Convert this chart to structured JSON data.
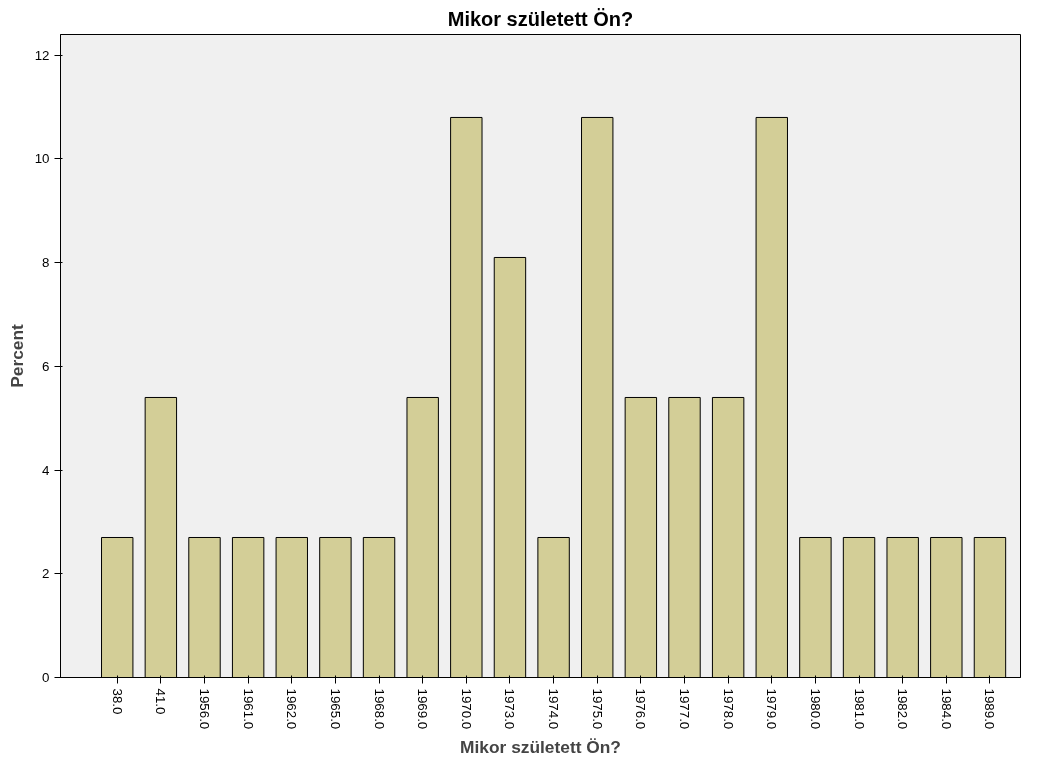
{
  "chart_data": {
    "type": "bar",
    "title": "Mikor született Ön?",
    "xlabel": "Mikor született Ön?",
    "ylabel": "Percent",
    "categories": [
      "38.0",
      "41.0",
      "1956.0",
      "1961.0",
      "1962.0",
      "1965.0",
      "1968.0",
      "1969.0",
      "1970.0",
      "1973.0",
      "1974.0",
      "1975.0",
      "1976.0",
      "1977.0",
      "1978.0",
      "1979.0",
      "1980.0",
      "1981.0",
      "1982.0",
      "1984.0",
      "1989.0"
    ],
    "values": [
      2.7,
      5.4,
      2.7,
      2.7,
      2.7,
      2.7,
      2.7,
      5.4,
      10.8,
      8.1,
      2.7,
      10.8,
      5.4,
      5.4,
      5.4,
      10.8,
      2.7,
      2.7,
      2.7,
      2.7,
      2.7
    ],
    "color": "#d3ce97",
    "ylim": [
      0,
      12.4
    ],
    "yticks": [
      0,
      2,
      4,
      6,
      8,
      10,
      12
    ],
    "grid": false
  }
}
